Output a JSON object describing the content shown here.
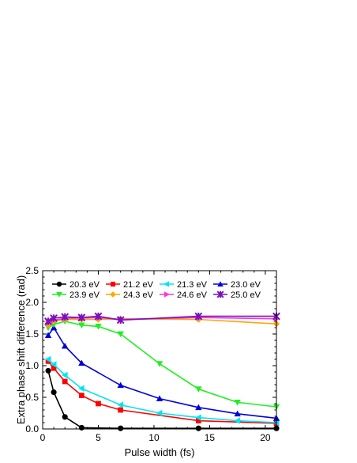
{
  "chart_data": {
    "type": "line",
    "xlabel": "Pulse width (fs)",
    "ylabel": "Extra phase shift difference (rad)",
    "xlim": [
      0,
      21
    ],
    "ylim": [
      0,
      2.5
    ],
    "x_ticks": [
      "0",
      "5",
      "10",
      "15",
      "20"
    ],
    "y_ticks": [
      "0.0",
      "0.5",
      "1.0",
      "1.5",
      "2.0",
      "2.5"
    ],
    "grid": false,
    "legend_position": "top-inside",
    "series": [
      {
        "name": "20.3 eV",
        "color": "#000000",
        "marker": "circle",
        "x": [
          0.5,
          1.0,
          2.0,
          3.5,
          7.0,
          14.0,
          21.0
        ],
        "y": [
          0.92,
          0.58,
          0.19,
          0.02,
          0.01,
          0.01,
          0.01
        ]
      },
      {
        "name": "21.2 eV",
        "color": "#ff0000",
        "marker": "square",
        "x": [
          0.5,
          1.0,
          2.0,
          3.5,
          5.0,
          7.0,
          14.0,
          21.0
        ],
        "y": [
          1.07,
          0.96,
          0.75,
          0.53,
          0.4,
          0.3,
          0.13,
          0.09
        ]
      },
      {
        "name": "21.3 eV",
        "color": "#00e5ee",
        "marker": "triangle-left",
        "x": [
          0.5,
          1.0,
          2.0,
          3.5,
          7.0,
          10.5,
          14.0,
          17.5,
          21.0
        ],
        "y": [
          1.1,
          1.02,
          0.85,
          0.64,
          0.38,
          0.25,
          0.18,
          0.13,
          0.1
        ]
      },
      {
        "name": "23.0 eV",
        "color": "#0000dd",
        "marker": "triangle-up",
        "x": [
          0.5,
          1.0,
          2.0,
          3.5,
          7.0,
          10.5,
          14.0,
          17.5,
          21.0
        ],
        "y": [
          1.48,
          1.6,
          1.31,
          1.04,
          0.69,
          0.48,
          0.34,
          0.24,
          0.17
        ]
      },
      {
        "name": "23.9 eV",
        "color": "#22ee22",
        "marker": "triangle-down",
        "x": [
          0.5,
          1.0,
          2.0,
          3.5,
          5.0,
          7.0,
          10.5,
          14.0,
          17.5,
          21.0
        ],
        "y": [
          1.6,
          1.65,
          1.7,
          1.64,
          1.62,
          1.5,
          1.03,
          0.63,
          0.42,
          0.35
        ]
      },
      {
        "name": "24.3 eV",
        "color": "#ffa500",
        "marker": "diamond",
        "x": [
          0.5,
          1.0,
          2.0,
          3.5,
          5.0,
          7.0,
          14.0,
          21.0
        ],
        "y": [
          1.64,
          1.7,
          1.73,
          1.73,
          1.73,
          1.74,
          1.73,
          1.66
        ]
      },
      {
        "name": "24.6 eV",
        "color": "#ff33dd",
        "marker": "triangle-right",
        "x": [
          0.5,
          1.0,
          2.0,
          3.5,
          5.0,
          7.0,
          14.0,
          21.0
        ],
        "y": [
          1.68,
          1.72,
          1.75,
          1.75,
          1.76,
          1.73,
          1.76,
          1.74
        ]
      },
      {
        "name": "25.0 eV",
        "color": "#7711bb",
        "marker": "star",
        "x": [
          0.5,
          1.0,
          2.0,
          3.5,
          5.0,
          7.0,
          14.0,
          21.0
        ],
        "y": [
          1.7,
          1.75,
          1.77,
          1.76,
          1.78,
          1.72,
          1.78,
          1.78
        ]
      }
    ]
  }
}
